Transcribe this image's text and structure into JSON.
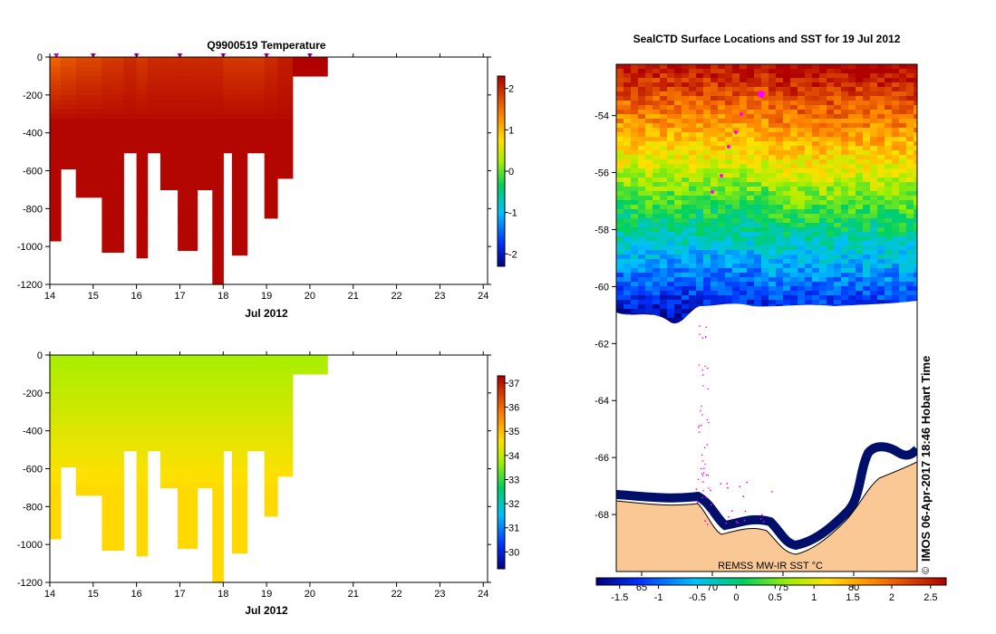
{
  "chart_data": [
    {
      "type": "heatmap",
      "title": "Q9900519  Temperature",
      "xlabel": "Jul 2012",
      "ylabel": "",
      "x_ticks": [
        "14",
        "15",
        "16",
        "17",
        "18",
        "19",
        "20",
        "21",
        "22",
        "23",
        "24"
      ],
      "xlim": [
        14,
        24.1
      ],
      "ylim": [
        -1200,
        0
      ],
      "y_ticks": [
        "0",
        "-200",
        "-400",
        "-600",
        "-800",
        "-1000",
        "-1200"
      ],
      "profile_times": [
        14.15,
        15.0,
        16.0,
        17.0,
        18.0,
        19.0,
        20.0
      ],
      "colorbar": {
        "ticks": [
          "2",
          "1",
          "0",
          "-1",
          "-2"
        ],
        "range": [
          -2.3,
          2.3
        ]
      },
      "profiles": [
        {
          "t0": 14.0,
          "t1": 14.25,
          "depth": -970,
          "top": 1.6
        },
        {
          "t0": 14.25,
          "t1": 14.6,
          "depth": -590,
          "top": 1.7
        },
        {
          "t0": 14.6,
          "t1": 15.2,
          "depth": -740,
          "top": 1.8
        },
        {
          "t0": 15.2,
          "t1": 15.7,
          "depth": -1030,
          "top": 1.9
        },
        {
          "t0": 15.7,
          "t1": 16.0,
          "depth": -505,
          "top": 2.0
        },
        {
          "t0": 16.0,
          "t1": 16.25,
          "depth": -1060,
          "top": 1.9
        },
        {
          "t0": 16.25,
          "t1": 16.55,
          "depth": -505,
          "top": 2.0
        },
        {
          "t0": 16.55,
          "t1": 16.95,
          "depth": -700,
          "top": 2.0
        },
        {
          "t0": 16.95,
          "t1": 17.4,
          "depth": -1020,
          "top": 2.0
        },
        {
          "t0": 17.4,
          "t1": 17.75,
          "depth": -700,
          "top": 2.0
        },
        {
          "t0": 17.75,
          "t1": 18.0,
          "depth": -1200,
          "top": 2.0
        },
        {
          "t0": 18.0,
          "t1": 18.2,
          "depth": -505,
          "top": 1.9
        },
        {
          "t0": 18.2,
          "t1": 18.55,
          "depth": -1045,
          "top": 1.9
        },
        {
          "t0": 18.55,
          "t1": 18.95,
          "depth": -505,
          "top": 1.9
        },
        {
          "t0": 18.95,
          "t1": 19.25,
          "depth": -850,
          "top": 2.0
        },
        {
          "t0": 19.25,
          "t1": 19.6,
          "depth": -640,
          "top": 2.1
        },
        {
          "t0": 19.6,
          "t1": 20.4,
          "depth": -100,
          "top": 2.3
        }
      ]
    },
    {
      "type": "heatmap",
      "title": "",
      "xlabel": "Jul 2012",
      "ylabel": "",
      "x_ticks": [
        "14",
        "15",
        "16",
        "17",
        "18",
        "19",
        "20",
        "21",
        "22",
        "23",
        "24"
      ],
      "xlim": [
        14,
        24.1
      ],
      "ylim": [
        -1200,
        0
      ],
      "y_ticks": [
        "0",
        "-200",
        "-400",
        "-600",
        "-800",
        "-1000",
        "-1200"
      ],
      "colorbar": {
        "ticks": [
          "37",
          "36",
          "35",
          "34",
          "33",
          "32",
          "31",
          "30"
        ],
        "range": [
          29.3,
          37.3
        ]
      },
      "profiles": [
        {
          "t0": 14.0,
          "t1": 14.25,
          "depth": -970
        },
        {
          "t0": 14.25,
          "t1": 14.6,
          "depth": -590
        },
        {
          "t0": 14.6,
          "t1": 15.2,
          "depth": -740
        },
        {
          "t0": 15.2,
          "t1": 15.7,
          "depth": -1030
        },
        {
          "t0": 15.7,
          "t1": 16.0,
          "depth": -505
        },
        {
          "t0": 16.0,
          "t1": 16.25,
          "depth": -1060
        },
        {
          "t0": 16.25,
          "t1": 16.55,
          "depth": -505
        },
        {
          "t0": 16.55,
          "t1": 16.95,
          "depth": -700
        },
        {
          "t0": 16.95,
          "t1": 17.4,
          "depth": -1020
        },
        {
          "t0": 17.4,
          "t1": 17.75,
          "depth": -700
        },
        {
          "t0": 17.75,
          "t1": 18.0,
          "depth": -1200
        },
        {
          "t0": 18.0,
          "t1": 18.2,
          "depth": -505
        },
        {
          "t0": 18.2,
          "t1": 18.55,
          "depth": -1045
        },
        {
          "t0": 18.55,
          "t1": 18.95,
          "depth": -505
        },
        {
          "t0": 18.95,
          "t1": 19.25,
          "depth": -850
        },
        {
          "t0": 19.25,
          "t1": 19.6,
          "depth": -640
        },
        {
          "t0": 19.6,
          "t1": 20.4,
          "depth": -100
        }
      ]
    },
    {
      "type": "heatmap",
      "title": "SealCTD Surface Locations and SST for 19 Jul 2012",
      "y_ticks": [
        "-54",
        "-56",
        "-58",
        "-60",
        "-62",
        "-64",
        "-66",
        "-68"
      ],
      "y_values": [
        -54,
        -56,
        -58,
        -60,
        -62,
        -64,
        -66,
        -68
      ],
      "ylim": [
        -52.2,
        -70.0
      ],
      "lon_ticks": [
        "65",
        "70",
        "75",
        "80"
      ],
      "source_label": "REMSS MW-IR SST °C",
      "colorbar": {
        "ticks": [
          "-1.5",
          "-1",
          "-0.5",
          "0",
          "0.5",
          "1",
          "1.5",
          "2",
          "2.5"
        ],
        "range": [
          -1.8,
          2.7
        ]
      },
      "stamp": "IMOS 06-Apr-2017 18:46 Hobart Time",
      "copyright": "©"
    }
  ]
}
